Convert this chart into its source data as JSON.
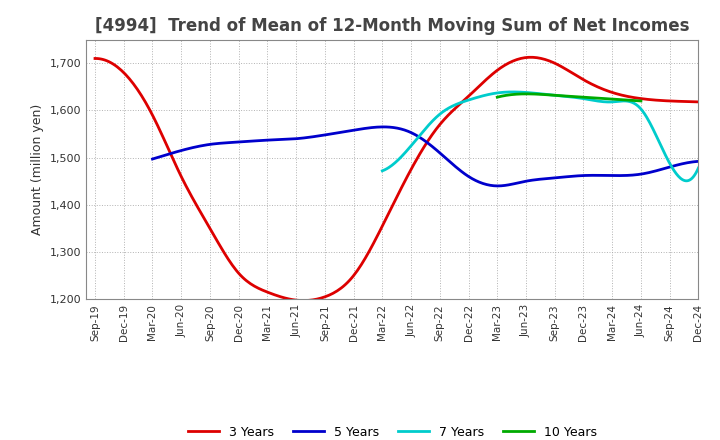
{
  "title": "[4994]  Trend of Mean of 12-Month Moving Sum of Net Incomes",
  "ylabel": "Amount (million yen)",
  "ylim": [
    1200,
    1750
  ],
  "yticks": [
    1200,
    1300,
    1400,
    1500,
    1600,
    1700
  ],
  "background_color": "#ffffff",
  "grid_color": "#aaaaaa",
  "series": {
    "3 Years": {
      "color": "#dd0000",
      "x": [
        0,
        1,
        2,
        3,
        4,
        5,
        6,
        7,
        8,
        9,
        10,
        11,
        12,
        13,
        14,
        15,
        16,
        17,
        18,
        19,
        20,
        21
      ],
      "y": [
        1710,
        1680,
        1590,
        1460,
        1350,
        1255,
        1215,
        1198,
        1205,
        1250,
        1355,
        1475,
        1570,
        1630,
        1685,
        1712,
        1700,
        1665,
        1638,
        1625,
        1620,
        1618
      ]
    },
    "5 Years": {
      "color": "#0000cc",
      "x": [
        2,
        3,
        4,
        5,
        6,
        7,
        8,
        9,
        10,
        11,
        12,
        13,
        14,
        15,
        16,
        17,
        18,
        19,
        20,
        21
      ],
      "y": [
        1497,
        1515,
        1528,
        1533,
        1537,
        1540,
        1548,
        1558,
        1565,
        1553,
        1510,
        1460,
        1440,
        1450,
        1457,
        1462,
        1462,
        1465,
        1480,
        1492
      ]
    },
    "7 Years": {
      "color": "#00cccc",
      "x": [
        10,
        11,
        12,
        13,
        14,
        15,
        16,
        17,
        18,
        19,
        20,
        21
      ],
      "y": [
        1472,
        1525,
        1592,
        1622,
        1637,
        1638,
        1632,
        1625,
        1618,
        1603,
        1488,
        1478
      ]
    },
    "10 Years": {
      "color": "#00aa00",
      "x": [
        14,
        15,
        16,
        17,
        18,
        19
      ],
      "y": [
        1628,
        1635,
        1632,
        1628,
        1624,
        1620
      ]
    }
  },
  "xtick_labels": [
    "Sep-19",
    "Dec-19",
    "Mar-20",
    "Jun-20",
    "Sep-20",
    "Dec-20",
    "Mar-21",
    "Jun-21",
    "Sep-21",
    "Dec-21",
    "Mar-22",
    "Jun-22",
    "Sep-22",
    "Dec-22",
    "Mar-23",
    "Jun-23",
    "Sep-23",
    "Dec-23",
    "Mar-24",
    "Jun-24",
    "Sep-24",
    "Dec-24"
  ],
  "legend_labels": [
    "3 Years",
    "5 Years",
    "7 Years",
    "10 Years"
  ],
  "legend_colors": [
    "#dd0000",
    "#0000cc",
    "#00cccc",
    "#00aa00"
  ],
  "title_fontsize": 12,
  "title_color": "#444444"
}
